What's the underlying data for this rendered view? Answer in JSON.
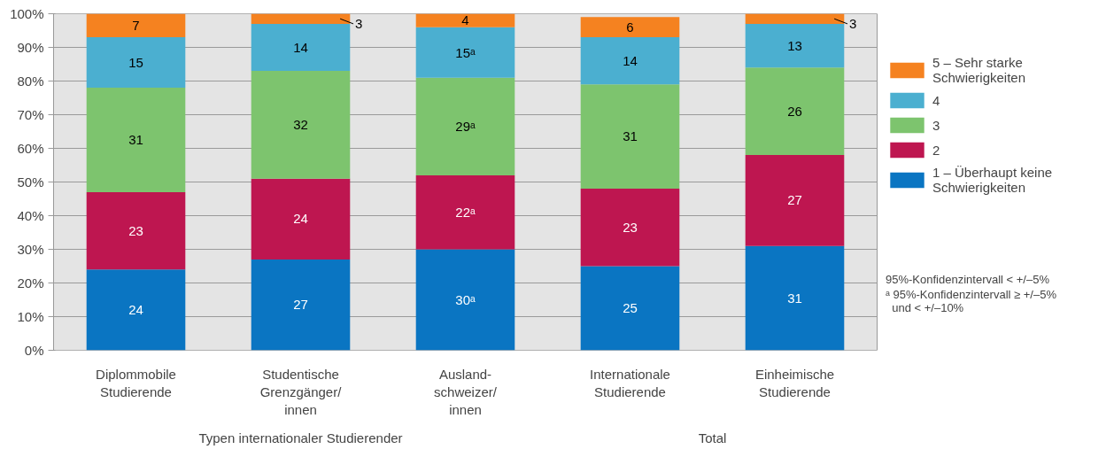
{
  "chart_data": {
    "type": "bar",
    "stacked": true,
    "categories": [
      "Diplommobile\nStudierende",
      "Studentische\nGrenzgänger/\ninnen",
      "Ausland-\nschweizer/\ninnen",
      "Internationale\nStudierende",
      "Einheimische\nStudierende"
    ],
    "series": [
      {
        "name": "1 – Überhaupt keine\nSchwierigkeiten",
        "color": "#0a75c2",
        "values": [
          24,
          27,
          30,
          25,
          31
        ],
        "value_labels": [
          "24",
          "27",
          "30ᵃ",
          "25",
          "31"
        ]
      },
      {
        "name": "2",
        "color": "#be1650",
        "values": [
          23,
          24,
          22,
          23,
          27
        ],
        "value_labels": [
          "23",
          "24",
          "22ᵃ",
          "23",
          "27"
        ]
      },
      {
        "name": "3",
        "color": "#7dc46e",
        "values": [
          31,
          32,
          29,
          31,
          26
        ],
        "value_labels": [
          "31",
          "32",
          "29ᵃ",
          "31",
          "26"
        ]
      },
      {
        "name": "4",
        "color": "#4bafd0",
        "values": [
          15,
          14,
          15,
          14,
          13
        ],
        "value_labels": [
          "15",
          "14",
          "15ᵃ",
          "14",
          "13"
        ]
      },
      {
        "name": "5 – Sehr starke\nSchwierigkeiten",
        "color": "#f58220",
        "values": [
          7,
          3,
          4,
          6,
          3
        ],
        "value_labels": [
          "7",
          "3",
          "4",
          "6",
          "3"
        ]
      }
    ],
    "ylim": [
      0,
      100
    ],
    "yticks": [
      {
        "value": 0,
        "label": "0%"
      },
      {
        "value": 10,
        "label": "10%"
      },
      {
        "value": 20,
        "label": "20%"
      },
      {
        "value": 30,
        "label": "30%"
      },
      {
        "value": 40,
        "label": "40%"
      },
      {
        "value": 50,
        "label": "50%"
      },
      {
        "value": 60,
        "label": "60%"
      },
      {
        "value": 70,
        "label": "70%"
      },
      {
        "value": 80,
        "label": "80%"
      },
      {
        "value": 90,
        "label": "90%"
      },
      {
        "value": 100,
        "label": "100%"
      }
    ],
    "grid": "y",
    "legend": "top right",
    "annotations": [
      "Typen internationaler Studierender",
      "Total",
      "95%-Konfidenzintervall < +/–5%",
      "ᵃ 95%-Konfidenzintervall ≥ +/–5%\n  und < +/–10%"
    ]
  }
}
